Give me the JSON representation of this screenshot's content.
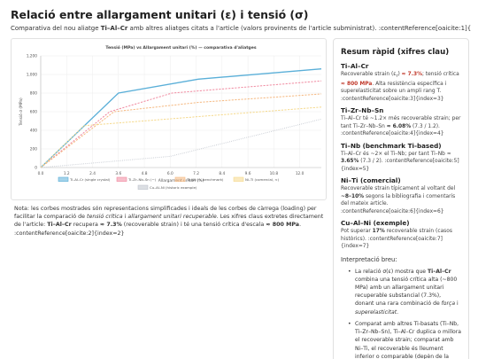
{
  "page": {
    "title": "Relació entre allargament unitari (ε) i tensió (σ)",
    "subtitle_pre": "Comparativa del nou aliatge ",
    "subtitle_alloy": "Ti–Al–Cr",
    "subtitle_post": " amb altres aliatges citats a l'article (valors provinents de l'article subministrat). :contentReference[oaicite:1]{index=1}"
  },
  "chart_data": {
    "type": "line",
    "title": "Tensió (MPa) vs Allargament unitari (%) — comparativa d'aliatges",
    "xlabel": "Allargament unitari (%)",
    "ylabel": "Tensió σ (MPa)",
    "xlim": [
      0,
      13
    ],
    "ylim": [
      0,
      1200
    ],
    "xticks": [
      "0.0",
      "1.2",
      "2.4",
      "3.6",
      "4.8",
      "6.0",
      "7.2",
      "8.4",
      "9.6",
      "10.8",
      "12.0"
    ],
    "yticks": [
      "0",
      "200",
      "400",
      "600",
      "800",
      "1,000",
      "1,200"
    ],
    "grid": true,
    "legend_position": "bottom",
    "series": [
      {
        "name": "Ti–Al–Cr (single crystal)",
        "color": "#5aafd8",
        "style": "solid",
        "x": [
          0,
          3.6,
          7.3,
          13
        ],
        "y": [
          0,
          800,
          950,
          1060
        ]
      },
      {
        "name": "Ti–Zr–Nb–Sn (∼)",
        "color": "#f08aa0",
        "style": "dashed",
        "x": [
          0,
          3.2,
          6.08,
          13
        ],
        "y": [
          0,
          600,
          800,
          930
        ]
      },
      {
        "name": "Ti–Nb (≈ benchmark)",
        "color": "#f5b880",
        "style": "dashed",
        "x": [
          0,
          3.4,
          7.3,
          13
        ],
        "y": [
          0,
          600,
          700,
          790
        ]
      },
      {
        "name": "Ni–Ti (comercial, ≈)",
        "color": "#f5d98c",
        "style": "dashed",
        "x": [
          0,
          2.0,
          8.0,
          13
        ],
        "y": [
          0,
          450,
          560,
          650
        ]
      },
      {
        "name": "Cu–Al–Ni (historic example)",
        "color": "#bfc4cc",
        "style": "dotted",
        "x": [
          0,
          6.0,
          13
        ],
        "y": [
          0,
          120,
          520
        ]
      }
    ]
  },
  "note": {
    "t1": "Nota: les corbes mostrades són representacions simplificades i ideals de les corbes de càrrega (loading) per facilitar la comparació de ",
    "t2": "tensió crítica",
    "t3": " i ",
    "t4": "allargament unitari recuperable",
    "t5": ". Les xifres claus extretes directament de l'article: ",
    "t6": "Ti–Al–Cr",
    "t7": " recupera ",
    "t8": "≈ 7.3%",
    "t9": " (recoverable strain) i té una tensió crítica d'escala ",
    "t10": "≈ 800 MPa",
    "t11": ". :contentReference[oaicite:2]{index=2}"
  },
  "sidebar": {
    "title": "Resum ràpid (xifres clau)",
    "alloys": [
      {
        "name": "Ti–Al–Cr",
        "pre": "Recoverable strain (ε",
        "sub": "r",
        "mid": ") ",
        "bold1": "≈ 7.3%",
        "mid2": "; tensió crítica ",
        "bold2": "≈ 800 MPa",
        "post": ". Alta resistència específica i superelasticitat sobre un ampli rang T. :contentReference[oaicite:3]{index=3}"
      },
      {
        "name": "Ti–Zr–Nb–Sn",
        "pre": "Ti–Al–Cr té ~1.2× més recoverable strain; per tant Ti–Zr–Nb–Sn ",
        "bold1": "≈ 6.08%",
        "post": " (7.3 / 1.2). :contentReference[oaicite:4]{index=4}"
      },
      {
        "name": "Ti–Nb (benchmark Ti-based)",
        "pre": "Ti–Al–Cr és ~2× el Ti–Nb; per tant Ti–Nb ≈ ",
        "bold1": "3.65%",
        "post": " (7.3 / 2). :contentReference[oaicite:5]{index=5}"
      },
      {
        "name": "Ni–Ti (comercial)",
        "pre": "Recoverable strain típicament al voltant del ",
        "bold1": "~8–10%",
        "post": " segons la bibliografia i comentaris del mateix article. :contentReference[oaicite:6]{index=6}"
      },
      {
        "name": "Cu–Al–Ni (exemple)",
        "pre": "Pot superar ",
        "bold1": "17%",
        "post": " recoverable strain (casos històrics). :contentReference[oaicite:7]{index=7}"
      }
    ],
    "interp_title": "Interpretació breu:",
    "interp": [
      {
        "t1": "La relació σ(ε) mostra que ",
        "b1": "Ti–Al–Cr",
        "t2": " combina una tensió crítica alta (~800 MPa) amb un allargament unitari recuperable substancial (7.3%), donant una rara combinació de ",
        "i1": "força",
        "t3": " i ",
        "i2": "superelasticitat",
        "t4": "."
      },
      {
        "t1": "Comparat amb altres Ti-basats (Ti–Nb, Ti–Zr–Nb–Sn), Ti–Al–Cr duplica o millora el recoverable strain; comparat amb Ni–Ti, el recoverable és lleument inferior o comparable (depèn de la"
      }
    ]
  }
}
